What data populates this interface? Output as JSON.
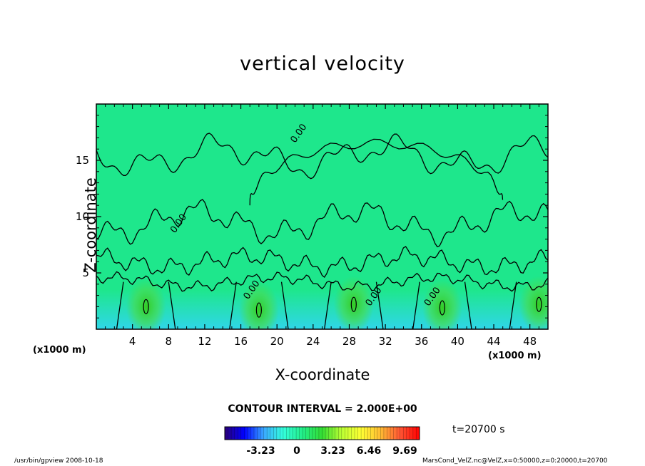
{
  "chart_data": {
    "type": "heatmap",
    "title": "vertical velocity",
    "xlabel": "X-coordinate",
    "ylabel": "Z-coordinate",
    "x_unit_label": "(x1000 m)",
    "xlim": [
      0,
      50
    ],
    "ylim": [
      0,
      20
    ],
    "x_ticks": [
      4,
      8,
      12,
      16,
      20,
      24,
      28,
      32,
      36,
      40,
      44,
      48
    ],
    "y_ticks": [
      5,
      10,
      15
    ],
    "contour_interval_text": "CONTOUR INTERVAL = 2.000E+00",
    "contour_labels": [
      {
        "text": "0.00",
        "x": 22,
        "y": 16.5
      },
      {
        "text": "0.00",
        "x": 8.7,
        "y": 8.5
      },
      {
        "text": "0.00",
        "x": 16.8,
        "y": 2.6
      },
      {
        "text": "0.00",
        "x": 30.3,
        "y": 2.0
      },
      {
        "text": "0.00",
        "x": 36.8,
        "y": 2.0
      }
    ],
    "updraft_cores": [
      {
        "x": 5.5,
        "z": 2.0
      },
      {
        "x": 18.0,
        "z": 1.7
      },
      {
        "x": 28.5,
        "z": 2.2
      },
      {
        "x": 38.3,
        "z": 1.9
      },
      {
        "x": 49.0,
        "z": 2.2
      }
    ],
    "colorbar": {
      "ticks": [
        "-3.23",
        "0",
        "3.23",
        "6.46",
        "9.69"
      ],
      "range": [
        -6.46,
        11.0
      ],
      "colors": [
        "#2a007a",
        "#0000ff",
        "#3aa8ff",
        "#33ffdd",
        "#22ee88",
        "#33dd33",
        "#bbff33",
        "#ffff33",
        "#ffbb33",
        "#ff5533",
        "#ff0000"
      ]
    },
    "time_text": "t=20700 s",
    "field_color": "#1ee78c",
    "grid": false,
    "legend": "colorbar-bottom"
  },
  "footer": {
    "program": "/usr/bin/gpview   2008-10-18",
    "source": "MarsCond_VelZ.nc@VelZ,x=0:50000,z=0:20000,t=20700"
  }
}
